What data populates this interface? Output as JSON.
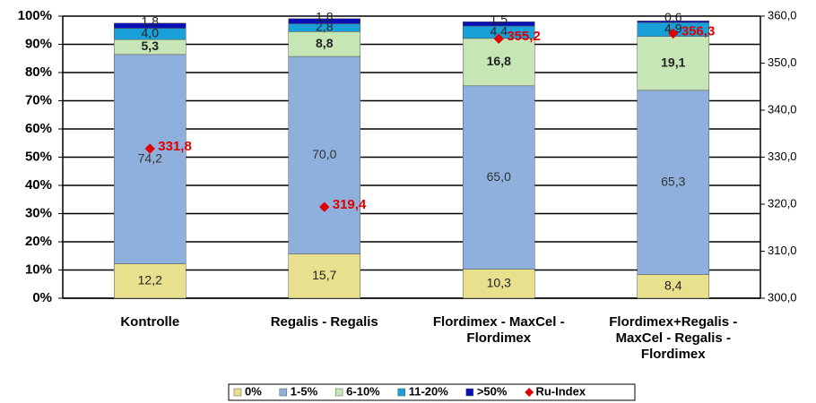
{
  "chart_data": {
    "type": "stacked-bar-with-scatter",
    "categories": [
      "Kontrolle",
      "Regalis - Regalis",
      "Flordimex - MaxCel -\nFlordimex",
      "Flordimex+Regalis -\nMaxCel - Regalis -\nFlordimex"
    ],
    "series": [
      {
        "name": "0%",
        "color": "#e8e08c",
        "values": [
          12.2,
          15.7,
          10.3,
          8.4
        ],
        "value_labels": [
          "12,2",
          "15,7",
          "10,3",
          "8,4"
        ]
      },
      {
        "name": "1-5%",
        "color": "#8fb0dc",
        "values": [
          74.2,
          70.0,
          65.0,
          65.3
        ],
        "value_labels": [
          "74,2",
          "70,0",
          "65,0",
          "65,3"
        ]
      },
      {
        "name": "6-10%",
        "color": "#c6e6b6",
        "values": [
          5.3,
          8.8,
          16.8,
          19.1
        ],
        "value_labels": [
          "5,3",
          "8,8",
          "16,8",
          "19,1"
        ]
      },
      {
        "name": "11-20%",
        "color": "#1aa0d8",
        "values": [
          4.0,
          2.8,
          4.4,
          4.9
        ],
        "value_labels": [
          "4,0",
          "2,8",
          "4,4",
          "4,9"
        ]
      },
      {
        "name": ">50%",
        "color": "#0a10b8",
        "values": [
          1.8,
          1.8,
          1.5,
          0.6
        ],
        "value_labels": [
          "1,8",
          "1,8",
          "1,5",
          "0,6"
        ]
      },
      {
        "name": "Ru-Index",
        "color": "#e00000",
        "axis": "y2",
        "values": [
          331.8,
          319.4,
          355.2,
          356.3
        ],
        "value_labels": [
          "331,8",
          "319,4",
          "355,2",
          "356,3"
        ]
      }
    ],
    "ylim": [
      0,
      100
    ],
    "yticks": [
      {
        "value": 0,
        "label": "0%"
      },
      {
        "value": 10,
        "label": "10%"
      },
      {
        "value": 20,
        "label": "20%"
      },
      {
        "value": 30,
        "label": "30%"
      },
      {
        "value": 40,
        "label": "40%"
      },
      {
        "value": 50,
        "label": "50%"
      },
      {
        "value": 60,
        "label": "60%"
      },
      {
        "value": 70,
        "label": "70%"
      },
      {
        "value": 80,
        "label": "80%"
      },
      {
        "value": 90,
        "label": "90%"
      },
      {
        "value": 100,
        "label": "100%"
      }
    ],
    "y2lim": [
      300,
      360
    ],
    "y2ticks": [
      {
        "value": 300,
        "label": "300,0"
      },
      {
        "value": 310,
        "label": "310,0"
      },
      {
        "value": 320,
        "label": "320,0"
      },
      {
        "value": 330,
        "label": "330,0"
      },
      {
        "value": 340,
        "label": "340,0"
      },
      {
        "value": 350,
        "label": "350,0"
      },
      {
        "value": 360,
        "label": "360,0"
      }
    ],
    "grid": true,
    "legend": "bottom"
  }
}
